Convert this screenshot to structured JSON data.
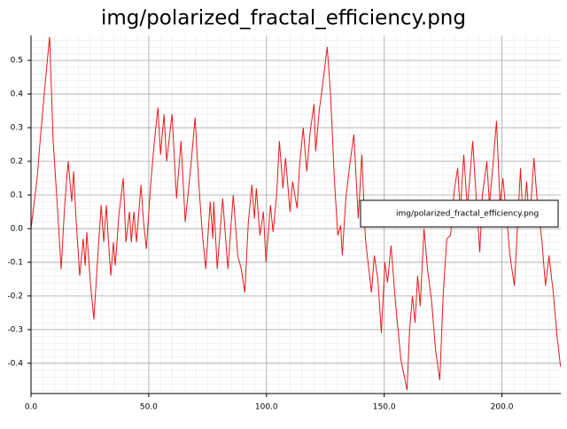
{
  "chart_data": {
    "type": "line",
    "title": "img/polarized_fractal_efficiency.png",
    "x": [
      0,
      2.6,
      4.1,
      6.4,
      7.9,
      9.4,
      10.9,
      12.8,
      14.3,
      15.8,
      17.3,
      18.1,
      19.2,
      20.7,
      22.2,
      23,
      23.7,
      25.2,
      26.7,
      28.2,
      29.8,
      30.9,
      32,
      32.8,
      33.9,
      35,
      35.8,
      37.3,
      39.2,
      40.3,
      41.8,
      42.6,
      43.7,
      44.8,
      46.7,
      47.8,
      49,
      50.8,
      52.4,
      53.9,
      55,
      56.5,
      57.6,
      59.9,
      61.8,
      63.7,
      65.5,
      67.8,
      69.7,
      71.2,
      72.7,
      74.2,
      76.1,
      77.2,
      77.6,
      79.1,
      81.4,
      83.6,
      85.9,
      87.8,
      89.3,
      90.8,
      92.3,
      93.8,
      94.9,
      95.7,
      97.2,
      98.7,
      99.8,
      101.7,
      102.8,
      104.3,
      105.5,
      107,
      108.1,
      110,
      111.1,
      113,
      114.1,
      115.6,
      117.1,
      118.6,
      120.2,
      120.9,
      122.4,
      123.9,
      125.8,
      127.3,
      128.8,
      130.3,
      131.5,
      132.2,
      133.7,
      135.2,
      137.1,
      139,
      140.5,
      142,
      144.6,
      145.8,
      147.3,
      148.8,
      150.3,
      151.4,
      152.9,
      154.8,
      157.1,
      159.7,
      160.8,
      162,
      163.1,
      164.2,
      165.3,
      166.9,
      168.4,
      170.2,
      171.8,
      173.6,
      175.1,
      176.6,
      178.2,
      179.7,
      181.2,
      182.3,
      183.8,
      185.3,
      187.6,
      189.1,
      190.6,
      191.7,
      193.6,
      194.7,
      196.2,
      197.7,
      199.2,
      200.4,
      202.3,
      203.4,
      205.3,
      207.9,
      209,
      210.5,
      211.7,
      213.6,
      215.1,
      216.9,
      218.5,
      220,
      221.8,
      223.4,
      224.9
    ],
    "series": [
      {
        "name": "img/polarized_fractal_efficiency.png",
        "color": "#e8191c",
        "values": [
          0,
          0.15,
          0.28,
          0.46,
          0.57,
          0.26,
          0.1,
          -0.12,
          0.07,
          0.2,
          0.08,
          0.17,
          0.02,
          -0.14,
          -0.03,
          -0.11,
          -0.01,
          -0.16,
          -0.27,
          -0.1,
          0.07,
          -0.04,
          0.07,
          -0.03,
          -0.14,
          -0.04,
          -0.11,
          0.04,
          0.15,
          -0.04,
          0.05,
          -0.04,
          0.05,
          -0.04,
          0.13,
          0.02,
          -0.06,
          0.13,
          0.26,
          0.36,
          0.22,
          0.34,
          0.2,
          0.34,
          0.09,
          0.26,
          0.02,
          0.18,
          0.33,
          0.14,
          -0.01,
          -0.12,
          0.08,
          -0.03,
          0.08,
          -0.12,
          0.09,
          -0.12,
          0.1,
          -0.08,
          -0.12,
          -0.19,
          0.02,
          0.13,
          0.03,
          0.12,
          -0.02,
          0.05,
          -0.1,
          0.07,
          -0.01,
          0.1,
          0.26,
          0.12,
          0.21,
          0.05,
          0.14,
          0.06,
          0.19,
          0.3,
          0.17,
          0.29,
          0.37,
          0.23,
          0.35,
          0.43,
          0.54,
          0.39,
          0.15,
          -0.02,
          0.01,
          -0.08,
          0.09,
          0.18,
          0.28,
          0.03,
          0.22,
          -0.03,
          -0.19,
          -0.08,
          -0.15,
          -0.31,
          -0.1,
          -0.16,
          -0.05,
          -0.22,
          -0.39,
          -0.48,
          -0.3,
          -0.2,
          -0.28,
          -0.14,
          -0.23,
          0,
          -0.12,
          -0.22,
          -0.36,
          -0.45,
          -0.19,
          -0.03,
          -0.02,
          0.11,
          0.18,
          0.05,
          0.22,
          0.06,
          0.26,
          0.09,
          -0.07,
          0.1,
          0.2,
          0.07,
          0.19,
          0.32,
          0.07,
          0.15,
          0.01,
          -0.08,
          -0.17,
          0.18,
          0.01,
          0.14,
          0.01,
          0.21,
          0.07,
          -0.03,
          -0.17,
          -0.08,
          -0.19,
          -0.32,
          -0.41
        ]
      }
    ],
    "xlim": [
      0,
      225
    ],
    "ylim": [
      -0.49,
      0.574
    ],
    "xticks": [
      {
        "value": 0,
        "label": "0.0"
      },
      {
        "value": 50,
        "label": "50.0"
      },
      {
        "value": 100,
        "label": "100.0"
      },
      {
        "value": 150,
        "label": "150.0"
      },
      {
        "value": 200,
        "label": "200.0"
      }
    ],
    "yticks": [
      0.5,
      0.4,
      0.3,
      0.2,
      0.1,
      {
        "value": 0,
        "label": "0.0"
      },
      -0.1,
      -0.2,
      -0.3,
      -0.4
    ],
    "grid": true,
    "legend": "right"
  }
}
